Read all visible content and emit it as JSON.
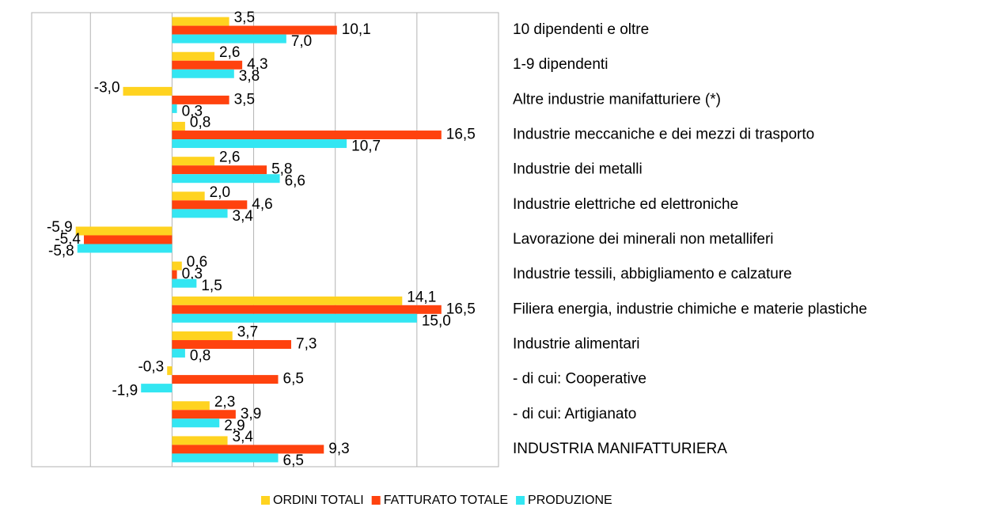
{
  "chart_data": {
    "type": "bar",
    "orientation": "horizontal",
    "categories": [
      "10 dipendenti e oltre",
      "1-9 dipendenti",
      "Altre industrie manifatturiere (*)",
      "Industrie meccaniche e dei mezzi di trasporto",
      "Industrie dei metalli",
      "Industrie elettriche ed elettroniche",
      "Lavorazione dei minerali non metalliferi",
      "Industrie tessili, abbigliamento e calzature",
      "Filiera energia, industrie chimiche e materie plastiche",
      "Industrie alimentari",
      " - di cui: Cooperative",
      " - di cui: Artigianato",
      "INDUSTRIA MANIFATTURIERA"
    ],
    "series": [
      {
        "name": "ORDINI TOTALI",
        "color": "#ffd320",
        "values": [
          3.5,
          2.6,
          -3.0,
          0.8,
          2.6,
          2.0,
          -5.9,
          0.6,
          14.1,
          3.7,
          -0.3,
          2.3,
          3.4
        ],
        "value_labels": [
          "3,5",
          "2,6",
          "-3,0",
          "0,8",
          "2,6",
          "2,0",
          "-5,9",
          "0,6",
          "14,1",
          "3,7",
          "-0,3",
          "2,3",
          "3,4"
        ]
      },
      {
        "name": "FATTURATO TOTALE",
        "color": "#ff420e",
        "values": [
          10.1,
          4.3,
          3.5,
          16.5,
          5.8,
          4.6,
          -5.4,
          0.3,
          16.5,
          7.3,
          6.5,
          3.9,
          9.3
        ],
        "value_labels": [
          "10,1",
          "4,3",
          "3,5",
          "16,5",
          "5,8",
          "4,6",
          "-5,4",
          "0,3",
          "16,5",
          "7,3",
          "6,5",
          "3,9",
          "9,3"
        ]
      },
      {
        "name": "PRODUZIONE",
        "color": "#33e6f2",
        "values": [
          7.0,
          3.8,
          0.3,
          10.7,
          6.6,
          3.4,
          -5.8,
          1.5,
          15.0,
          0.8,
          -1.9,
          2.9,
          6.5
        ],
        "value_labels": [
          "7,0",
          "3,8",
          "0,3",
          "10,7",
          "6,6",
          "3,4",
          "-5,8",
          "1,5",
          "15,0",
          "0,8",
          "-1,9",
          "2,9",
          "6,5"
        ]
      }
    ],
    "xlim": [
      -8.6,
      20
    ],
    "xticks": [
      -5,
      0,
      5,
      10,
      15,
      20
    ],
    "grid": true,
    "legend": "bottom"
  }
}
